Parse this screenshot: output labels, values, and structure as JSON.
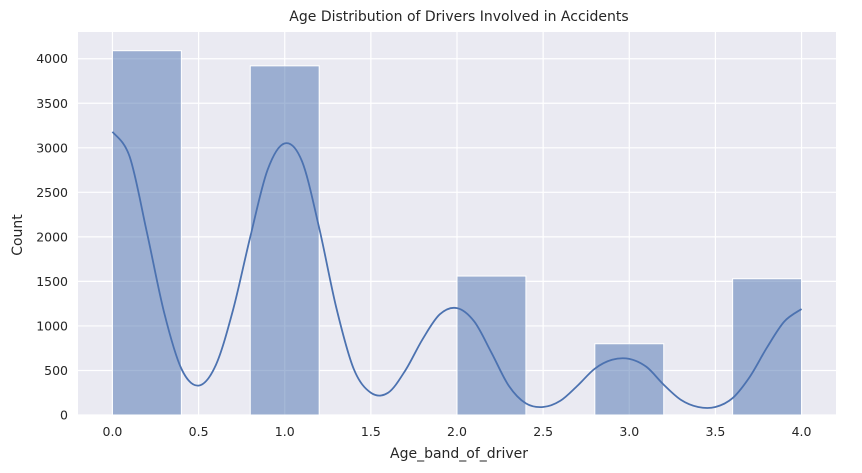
{
  "chart_data": {
    "type": "bar",
    "title": "Age Distribution of Drivers Involved in Accidents",
    "xlabel": "Age_band_of_driver",
    "ylabel": "Count",
    "xlim": [
      -0.2,
      4.2
    ],
    "ylim": [
      0,
      4300
    ],
    "x_ticks": [
      0.0,
      0.5,
      1.0,
      1.5,
      2.0,
      2.5,
      3.0,
      3.5,
      4.0
    ],
    "x_tick_labels": [
      "0.0",
      "0.5",
      "1.0",
      "1.5",
      "2.0",
      "2.5",
      "3.0",
      "3.5",
      "4.0"
    ],
    "y_ticks": [
      0,
      500,
      1000,
      1500,
      2000,
      2500,
      3000,
      3500,
      4000
    ],
    "y_tick_labels": [
      "0",
      "500",
      "1000",
      "1500",
      "2000",
      "2500",
      "3000",
      "3500",
      "4000"
    ],
    "grid": true,
    "bins": [
      {
        "start": 0.0,
        "end": 0.4,
        "count": 4090
      },
      {
        "start": 0.4,
        "end": 0.8,
        "count": 0
      },
      {
        "start": 0.8,
        "end": 1.2,
        "count": 3920
      },
      {
        "start": 1.2,
        "end": 1.6,
        "count": 0
      },
      {
        "start": 1.6,
        "end": 2.0,
        "count": 0
      },
      {
        "start": 2.0,
        "end": 2.4,
        "count": 1560
      },
      {
        "start": 2.4,
        "end": 2.8,
        "count": 0
      },
      {
        "start": 2.8,
        "end": 3.2,
        "count": 800
      },
      {
        "start": 3.2,
        "end": 3.6,
        "count": 0
      },
      {
        "start": 3.6,
        "end": 4.0,
        "count": 1530
      }
    ],
    "kde_curve": {
      "x": [
        0.0,
        0.1,
        0.2,
        0.3,
        0.4,
        0.5,
        0.6,
        0.7,
        0.8,
        0.9,
        1.0,
        1.1,
        1.2,
        1.3,
        1.4,
        1.5,
        1.6,
        1.7,
        1.8,
        1.9,
        2.0,
        2.1,
        2.2,
        2.3,
        2.4,
        2.5,
        2.6,
        2.7,
        2.8,
        2.9,
        3.0,
        3.1,
        3.2,
        3.3,
        3.4,
        3.5,
        3.6,
        3.7,
        3.8,
        3.9,
        4.0
      ],
      "y": [
        3180,
        2900,
        2050,
        1150,
        520,
        330,
        560,
        1180,
        2000,
        2750,
        3050,
        2850,
        2100,
        1200,
        520,
        250,
        250,
        500,
        850,
        1130,
        1200,
        1050,
        700,
        330,
        130,
        90,
        160,
        330,
        520,
        620,
        630,
        540,
        340,
        170,
        90,
        90,
        190,
        430,
        760,
        1050,
        1190
      ]
    },
    "colors": {
      "bar_fill": "#4c72b0",
      "bar_opacity": 0.5,
      "kde_line": "#4c72b0",
      "plot_background": "#eaeaf2",
      "grid": "#ffffff"
    }
  }
}
